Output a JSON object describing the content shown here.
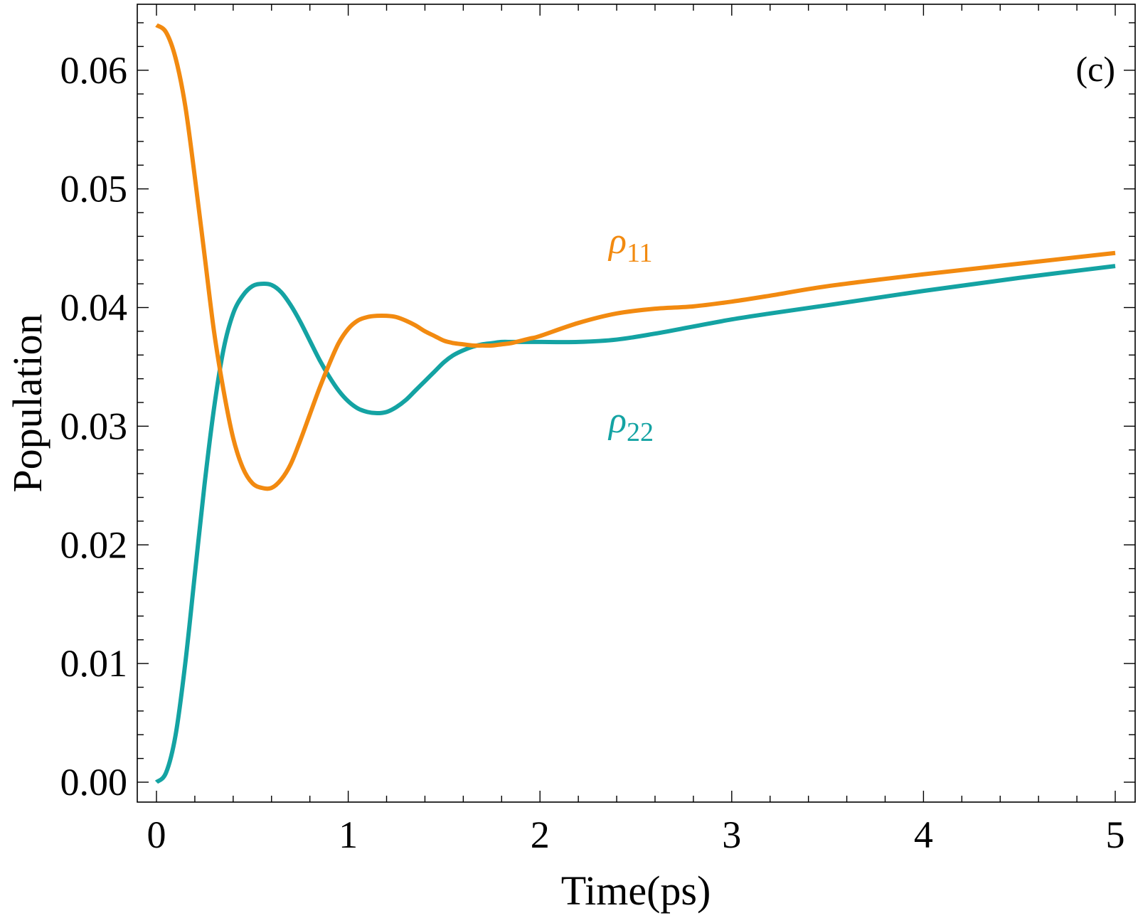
{
  "chart_data": {
    "type": "line",
    "panel_label": "(c)",
    "xlabel": "Time(ps)",
    "ylabel": "Population",
    "xlim": [
      0,
      5
    ],
    "ylim": [
      0,
      0.064
    ],
    "xticks": [
      0,
      1,
      2,
      3,
      4,
      5
    ],
    "xtick_labels": [
      "0",
      "1",
      "2",
      "3",
      "4",
      "5"
    ],
    "yticks": [
      0.0,
      0.01,
      0.02,
      0.03,
      0.04,
      0.05,
      0.06
    ],
    "ytick_labels": [
      "0.00",
      "0.01",
      "0.02",
      "0.03",
      "0.04",
      "0.05",
      "0.06"
    ],
    "grid": false,
    "series": [
      {
        "name": "rho11",
        "label_symbol": "ρ",
        "label_sub": "11",
        "color": "#F28A10",
        "x": [
          0.0,
          0.05,
          0.1,
          0.15,
          0.2,
          0.25,
          0.3,
          0.35,
          0.4,
          0.45,
          0.5,
          0.55,
          0.6,
          0.65,
          0.7,
          0.75,
          0.8,
          0.85,
          0.9,
          0.95,
          1.0,
          1.05,
          1.1,
          1.15,
          1.2,
          1.25,
          1.3,
          1.35,
          1.4,
          1.45,
          1.5,
          1.55,
          1.6,
          1.65,
          1.7,
          1.75,
          1.8,
          1.85,
          1.9,
          1.95,
          2.0,
          2.2,
          2.4,
          2.6,
          2.8,
          3.0,
          3.2,
          3.5,
          4.0,
          4.5,
          5.0
        ],
        "y": [
          0.0638,
          0.0632,
          0.061,
          0.057,
          0.051,
          0.0445,
          0.038,
          0.033,
          0.029,
          0.0265,
          0.0252,
          0.0248,
          0.0248,
          0.0255,
          0.0268,
          0.0288,
          0.031,
          0.0332,
          0.0352,
          0.037,
          0.0382,
          0.0389,
          0.0392,
          0.0393,
          0.0393,
          0.0392,
          0.0389,
          0.0385,
          0.038,
          0.0376,
          0.0372,
          0.037,
          0.0369,
          0.0368,
          0.0368,
          0.0368,
          0.0369,
          0.037,
          0.0372,
          0.0374,
          0.0376,
          0.0387,
          0.0395,
          0.0399,
          0.0401,
          0.0405,
          0.041,
          0.0418,
          0.0428,
          0.0437,
          0.0446
        ]
      },
      {
        "name": "rho22",
        "label_symbol": "ρ",
        "label_sub": "22",
        "color": "#14A3A3",
        "x": [
          0.0,
          0.05,
          0.1,
          0.15,
          0.2,
          0.25,
          0.3,
          0.35,
          0.4,
          0.45,
          0.5,
          0.55,
          0.6,
          0.65,
          0.7,
          0.75,
          0.8,
          0.85,
          0.9,
          0.95,
          1.0,
          1.05,
          1.1,
          1.15,
          1.2,
          1.25,
          1.3,
          1.35,
          1.4,
          1.45,
          1.5,
          1.55,
          1.6,
          1.65,
          1.7,
          1.75,
          1.8,
          1.85,
          1.9,
          1.95,
          2.0,
          2.2,
          2.4,
          2.6,
          2.8,
          3.0,
          3.2,
          3.5,
          4.0,
          4.5,
          5.0
        ],
        "y": [
          0.0,
          0.0008,
          0.004,
          0.01,
          0.0175,
          0.025,
          0.0315,
          0.0365,
          0.0395,
          0.041,
          0.0418,
          0.042,
          0.0419,
          0.0413,
          0.0402,
          0.0388,
          0.0372,
          0.0356,
          0.0342,
          0.033,
          0.0321,
          0.0315,
          0.0312,
          0.0311,
          0.0312,
          0.0316,
          0.0322,
          0.033,
          0.0338,
          0.0346,
          0.0354,
          0.036,
          0.0364,
          0.0367,
          0.0369,
          0.037,
          0.0371,
          0.0371,
          0.0371,
          0.0371,
          0.0371,
          0.0371,
          0.0373,
          0.0378,
          0.0384,
          0.039,
          0.0395,
          0.0402,
          0.0414,
          0.0425,
          0.0435
        ]
      }
    ]
  }
}
